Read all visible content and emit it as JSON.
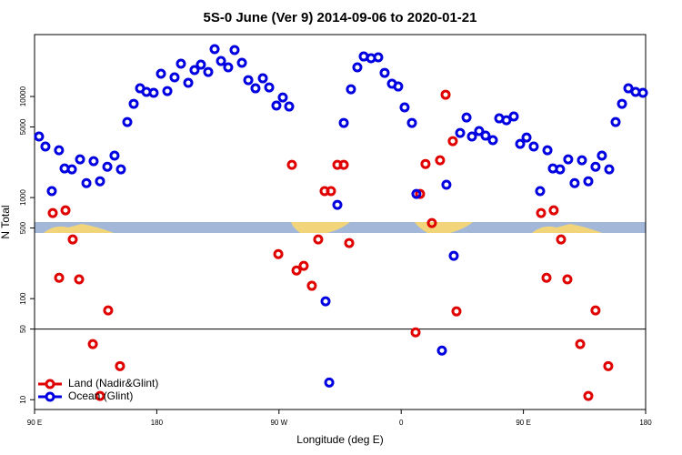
{
  "chart_data": {
    "type": "scatter",
    "title": "5S-0 June (Ver 9)   2014-09-06 to 2020-01-21",
    "x_label": "Longitude (deg E)",
    "y_label": "N Total",
    "log_y": true,
    "legend": "lower-left",
    "hline": 50,
    "xlim": [
      90,
      540
    ],
    "ylim": [
      8,
      41000
    ],
    "xticks": [
      {
        "value": 90,
        "label": "90 E"
      },
      180,
      {
        "value": 270,
        "label": "90 W"
      },
      {
        "value": 360,
        "label": "0"
      },
      {
        "value": 450,
        "label": "90 E"
      },
      {
        "value": 540,
        "label": "180"
      }
    ],
    "yticks": [
      10,
      50,
      100,
      500,
      1000,
      5000,
      10000
    ],
    "series": [
      {
        "name": "Land (Nadir&Glint)",
        "color": "#e00000",
        "x": [
          103.4,
          108.1,
          112.8,
          118.1,
          122.8,
          132.9,
          138.2,
          144.2,
          152.9,
          269.5,
          279.5,
          282.9,
          288.2,
          294.2,
          298.9,
          303.6,
          308.3,
          313,
          317.7,
          321.7,
          370.6,
          373.9,
          377.9,
          382.6,
          388.6,
          392.7,
          398,
          400.7,
          463,
          467,
          472.3,
          477.7,
          482.4,
          491.8,
          497.8,
          503.1,
          512.5
        ],
        "values": [
          703,
          161,
          748,
          385,
          155,
          35.5,
          10.9,
          76.4,
          21.5,
          276,
          2110,
          190,
          211,
          134,
          385,
          1160,
          1160,
          2110,
          2110,
          355,
          46.4,
          1087,
          2150,
          560,
          2340,
          10420,
          3620,
          74.8,
          703,
          161,
          748,
          385,
          155,
          35.5,
          10.9,
          76.4,
          21.5
        ]
      },
      {
        "name": "Ocean (Glint)",
        "color": "#0000e0",
        "x": [
          93.3,
          98,
          102.7,
          108,
          112.1,
          117.5,
          123.5,
          128.2,
          133.5,
          138.2,
          143.6,
          148.9,
          153.6,
          158.3,
          163,
          167.7,
          172.4,
          177.7,
          183.1,
          187.8,
          193.1,
          197.8,
          203.2,
          207.8,
          212.5,
          217.9,
          222.6,
          227.3,
          232.6,
          237.3,
          242.7,
          247.4,
          252.7,
          258.1,
          262.8,
          268.1,
          272.8,
          277.5,
          304.3,
          307,
          313,
          317.7,
          323,
          327.7,
          332.4,
          337.8,
          343.1,
          347.8,
          353.2,
          357.8,
          362.5,
          367.9,
          371.2,
          390,
          393.3,
          398.7,
          403.4,
          408.1,
          412.1,
          417.4,
          422.1,
          427.5,
          432.2,
          437.5,
          442.9,
          447.6,
          452.3,
          457.6,
          462.3,
          467.7,
          471.7,
          477,
          483,
          487.7,
          493.1,
          497.8,
          503.1,
          507.8,
          513.2,
          517.9,
          522.6,
          527.3,
          532.6,
          538
        ],
        "values": [
          4020,
          3200,
          1160,
          2940,
          1940,
          1900,
          2390,
          1390,
          2290,
          1450,
          2020,
          2600,
          1900,
          5590,
          8470,
          12050,
          11100,
          10870,
          16800,
          11320,
          15460,
          21100,
          13650,
          18250,
          20660,
          17500,
          29400,
          22450,
          19420,
          28800,
          21550,
          14520,
          12050,
          15140,
          12300,
          8130,
          9790,
          7960,
          94,
          14.8,
          847,
          5480,
          11800,
          19420,
          24900,
          23900,
          24400,
          17140,
          13370,
          12560,
          7800,
          5480,
          1087,
          30.6,
          1340,
          265,
          4360,
          6200,
          4020,
          4550,
          4100,
          3700,
          6080,
          5830,
          6340,
          3400,
          3930,
          3200,
          1160,
          2940,
          1940,
          1900,
          2390,
          1390,
          2340,
          1450,
          2020,
          2600,
          1900,
          5590,
          8470,
          12050,
          11100,
          10870
        ]
      }
    ]
  }
}
